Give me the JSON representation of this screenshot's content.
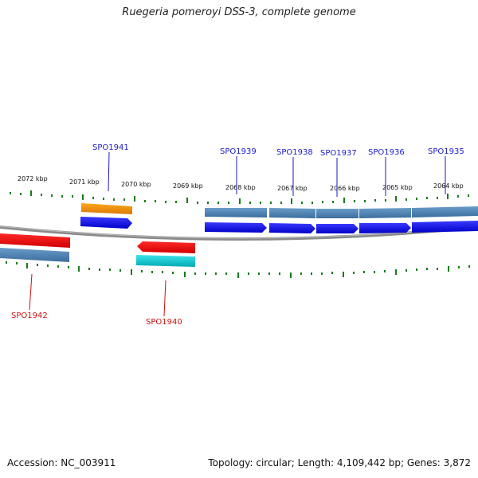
{
  "title": "Ruegeria pomeroyi DSS-3, complete genome",
  "footer": {
    "accession": "Accession: NC_003911",
    "summary": "Topology: circular; Length: 4,109,442 bp; Genes: 3,872"
  },
  "colors": {
    "forward_gene": "#0000ee",
    "reverse_gene": "#ee0000",
    "forward_cds_band": "#4a7fb0",
    "reverse_cds_band": "#4a7fb0",
    "rna_forward": "#f08c00",
    "rna_reverse": "#00c8d2",
    "tick": "#1a7a1a",
    "backbone": "#808080",
    "label_forward": "#1a1acc",
    "label_reverse": "#cc1111"
  },
  "kbp_labels": [
    "2072 kbp",
    "2071 kbp",
    "2070 kbp",
    "2069 kbp",
    "2068 kbp",
    "2067 kbp",
    "2066 kbp",
    "2065 kbp",
    "2064 kbp"
  ],
  "genes": [
    {
      "id": "SPO1941",
      "strand": "forward",
      "type": "CDS",
      "extra": "rna"
    },
    {
      "id": "SPO1939",
      "strand": "forward",
      "type": "CDS"
    },
    {
      "id": "SPO1938",
      "strand": "forward",
      "type": "CDS"
    },
    {
      "id": "SPO1937",
      "strand": "forward",
      "type": "CDS"
    },
    {
      "id": "SPO1936",
      "strand": "forward",
      "type": "CDS"
    },
    {
      "id": "SPO1935",
      "strand": "forward",
      "type": "CDS"
    },
    {
      "id": "SPO1942",
      "strand": "reverse",
      "type": "CDS"
    },
    {
      "id": "SPO1940",
      "strand": "reverse",
      "type": "CDS",
      "extra": "rna"
    }
  ]
}
